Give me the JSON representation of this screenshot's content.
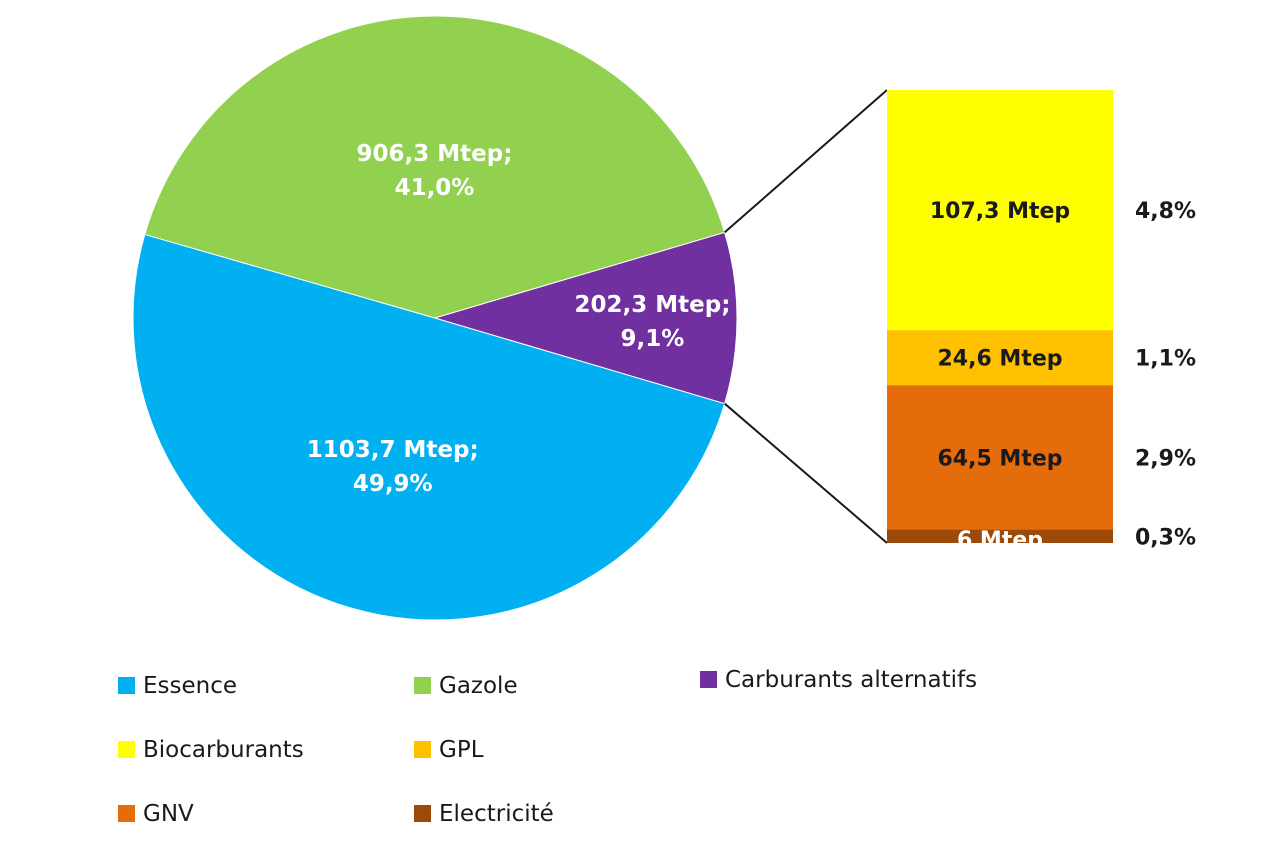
{
  "chart_data": {
    "type": "bar-of-pie",
    "pie": {
      "slices": [
        {
          "name": "Essence",
          "value": 1103.7,
          "percent": 49.9,
          "label_value": "1103,7 Mtep;",
          "label_pct": "49,9%",
          "color": "#00b0f0"
        },
        {
          "name": "Gazole",
          "value": 906.3,
          "percent": 41.0,
          "label_value": "906,3 Mtep;",
          "label_pct": "41,0%",
          "color": "#92d050"
        },
        {
          "name": "Carburants alternatifs",
          "value": 202.3,
          "percent": 9.1,
          "label_value": "202,3 Mtep;",
          "label_pct": "9,1%",
          "color": "#7030a0"
        }
      ]
    },
    "bar": {
      "segments": [
        {
          "name": "Biocarburants",
          "value": 107.3,
          "label": "107,3 Mtep",
          "percent_label": "4,8%",
          "color": "#ffff00"
        },
        {
          "name": "GPL",
          "value": 24.6,
          "label": "24,6 Mtep",
          "percent_label": "1,1%",
          "color": "#ffc000"
        },
        {
          "name": "GNV",
          "value": 64.5,
          "label": "64,5 Mtep",
          "percent_label": "2,9%",
          "color": "#e46c0a"
        },
        {
          "name": "Electricité",
          "value": 6,
          "label": "6 Mtep",
          "percent_label": "0,3%",
          "color": "#9c4a0a"
        }
      ]
    },
    "legend": [
      {
        "name": "Essence",
        "color": "#00b0f0"
      },
      {
        "name": "Gazole",
        "color": "#92d050"
      },
      {
        "name": "Carburants alternatifs",
        "color": "#7030a0"
      },
      {
        "name": "Biocarburants",
        "color": "#ffff00"
      },
      {
        "name": "GPL",
        "color": "#ffc000"
      },
      {
        "name": "GNV",
        "color": "#e46c0a"
      },
      {
        "name": "Electricité",
        "color": "#9c4a0a"
      }
    ],
    "legend_position": "bottom"
  }
}
